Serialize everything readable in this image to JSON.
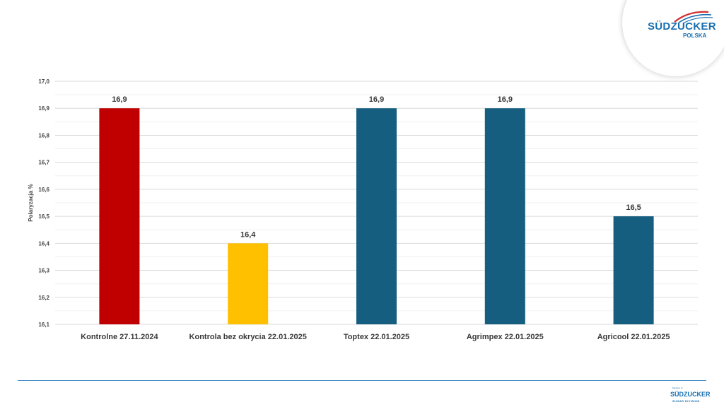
{
  "logo": {
    "brand": "SÜDZUCKER",
    "sub": "POLSKA"
  },
  "footer_logo": {
    "small": "Member of",
    "brand": "SÜDZUCKER",
    "tag": "SUGAR DIVISION"
  },
  "colors": {
    "brand_blue": "#1a6fb0",
    "bar_red": "#c00000",
    "bar_yellow": "#ffc000",
    "bar_blue": "#165e80"
  },
  "chart_data": {
    "type": "bar",
    "ylabel": "Polaryzacja %",
    "ylim": [
      16.1,
      17.0
    ],
    "ytick_step": 0.1,
    "grid": true,
    "categories": [
      "Kontrolne 27.11.2024",
      "Kontrola bez okrycia 22.01.2025",
      "Toptex 22.01.2025",
      "Agrimpex 22.01.2025",
      "Agricool 22.01.2025"
    ],
    "values": [
      16.9,
      16.4,
      16.9,
      16.9,
      16.5
    ],
    "data_labels": [
      "16,9",
      "16,4",
      "16,9",
      "16,9",
      "16,5"
    ],
    "bar_colors": [
      "#c00000",
      "#ffc000",
      "#165e80",
      "#165e80",
      "#165e80"
    ]
  }
}
